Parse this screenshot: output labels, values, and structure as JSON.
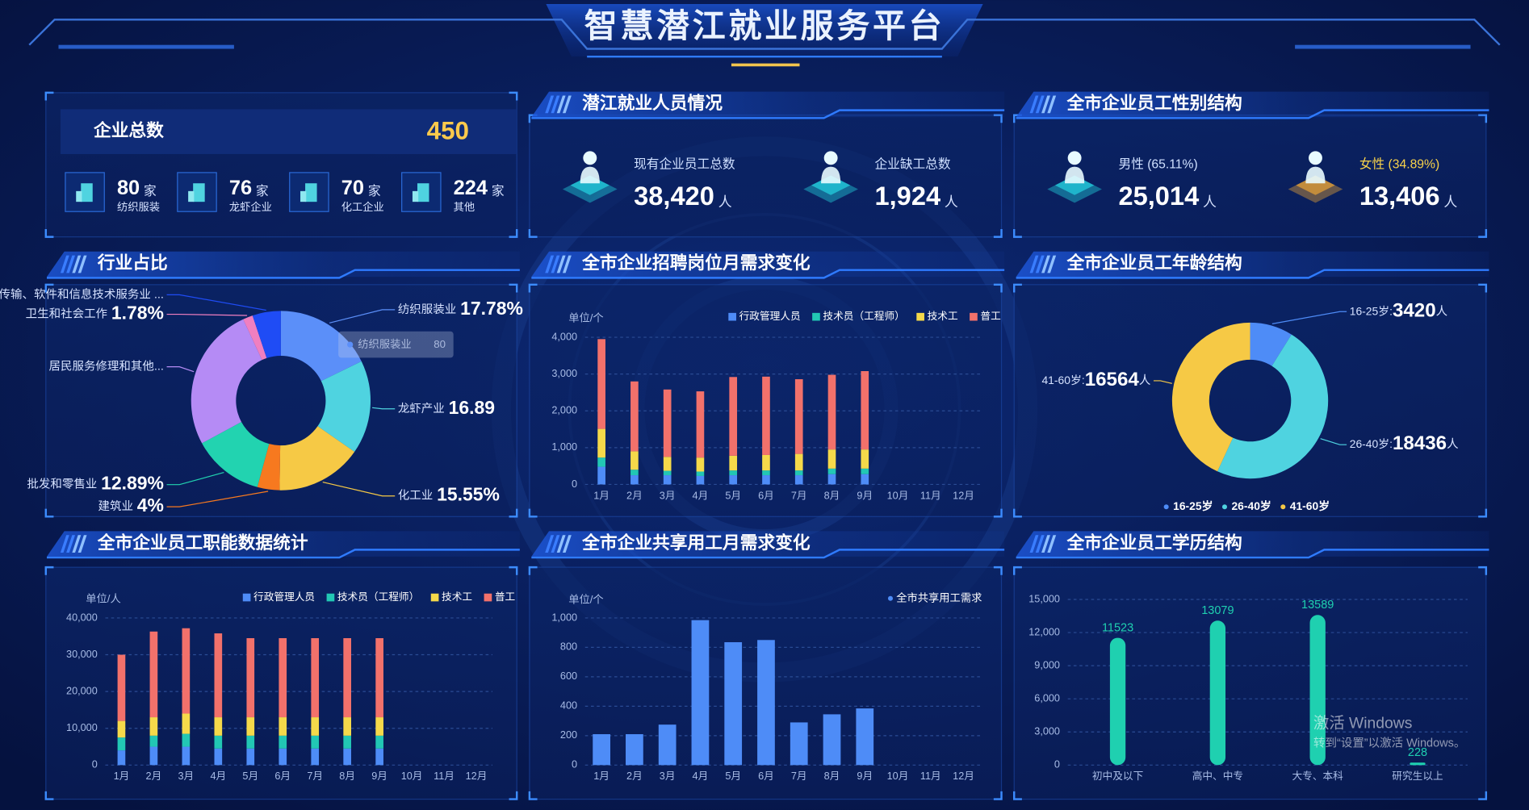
{
  "header": {
    "title": "智慧潜江就业服务平台"
  },
  "enterprise": {
    "label": "企业总数",
    "total": 450,
    "items": [
      {
        "value": 80,
        "unit": "家",
        "name": "纺织服装"
      },
      {
        "value": 76,
        "unit": "家",
        "name": "龙虾企业"
      },
      {
        "value": 70,
        "unit": "家",
        "name": "化工企业"
      },
      {
        "value": 224,
        "unit": "家",
        "name": "其他"
      }
    ]
  },
  "employment": {
    "title": "潜江就业人员情况",
    "items": [
      {
        "label": "现有企业员工总数",
        "value": "38,420",
        "unit": "人"
      },
      {
        "label": "企业缺工总数",
        "value": "1,924",
        "unit": "人"
      }
    ]
  },
  "gender": {
    "title": "全市企业员工性别结构",
    "items": [
      {
        "label": "男性 (65.11%)",
        "value": "25,014",
        "unit": "人"
      },
      {
        "label": "女性 (34.89%)",
        "value": "13,406",
        "unit": "人"
      }
    ]
  },
  "chart_data": [
    {
      "type": "donut",
      "title": "行业占比",
      "categories": [
        "纺织服装业",
        "龙虾产业",
        "化工业",
        "建筑业",
        "批发和零售业",
        "居民服务修理和其他...",
        "卫生和社会工作",
        "信息传输、软件和信息技术服务业 ..."
      ],
      "values": [
        17.78,
        16.89,
        15.55,
        4,
        12.89,
        26,
        1.78,
        5.11
      ],
      "value_labels": [
        "17.78%",
        "16.89",
        "15.55%",
        "4%",
        "12.89%",
        null,
        "1.78%",
        null
      ],
      "colors": [
        "#5b8ff9",
        "#4fd3e0",
        "#f6c945",
        "#f7791f",
        "#22d3b0",
        "#b58bf5",
        "#f07fc0",
        "#1f4cf5"
      ],
      "tooltip": {
        "name": "纺织服装业",
        "value": 80
      }
    },
    {
      "type": "stacked_bar",
      "title": "全市企业招聘岗位月需求变化",
      "y_label": "单位/个",
      "categories": [
        "1月",
        "2月",
        "3月",
        "4月",
        "5月",
        "6月",
        "7月",
        "8月",
        "9月",
        "10月",
        "11月",
        "12月"
      ],
      "series": [
        {
          "name": "行政管理人员",
          "color": "#4e8cf7",
          "values": [
            480,
            250,
            250,
            230,
            250,
            250,
            250,
            280,
            280,
            null,
            null,
            null
          ]
        },
        {
          "name": "技术员（工程师）",
          "color": "#22c7b4",
          "values": [
            250,
            150,
            120,
            120,
            130,
            130,
            130,
            150,
            150,
            null,
            null,
            null
          ]
        },
        {
          "name": "技术工",
          "color": "#f5d94a",
          "values": [
            780,
            500,
            380,
            380,
            400,
            420,
            450,
            520,
            520,
            null,
            null,
            null
          ]
        },
        {
          "name": "普工",
          "color": "#f2716b",
          "values": [
            2440,
            1900,
            1830,
            1800,
            2140,
            2130,
            2030,
            2030,
            2130,
            null,
            null,
            null
          ]
        }
      ],
      "ylim": [
        0,
        4000
      ],
      "yticks": [
        0,
        {
          "value": 1000,
          "label": "1,000"
        },
        {
          "value": 2000,
          "label": "2,000"
        },
        {
          "value": 3000,
          "label": "3,000"
        },
        {
          "value": 4000,
          "label": "4,000"
        }
      ]
    },
    {
      "type": "donut",
      "title": "全市企业员工年龄结构",
      "categories": [
        "16-25岁",
        "26-40岁",
        "41-60岁"
      ],
      "callout_labels": [
        "16-25岁:",
        "26-40岁:",
        "41-60岁:"
      ],
      "values": [
        3420,
        18436,
        16564
      ],
      "unit": "人",
      "colors": [
        "#4e8cf7",
        "#4fd3e0",
        "#f6c945"
      ]
    },
    {
      "type": "stacked_bar",
      "title": "全市企业员工职能数据统计",
      "y_label": "单位/人",
      "categories": [
        "1月",
        "2月",
        "3月",
        "4月",
        "5月",
        "6月",
        "7月",
        "8月",
        "9月",
        "10月",
        "11月",
        "12月"
      ],
      "series": [
        {
          "name": "行政管理人员",
          "color": "#4e8cf7",
          "values": [
            4000,
            5000,
            5000,
            4500,
            4500,
            4500,
            4500,
            4500,
            4500,
            null,
            null,
            null
          ]
        },
        {
          "name": "技术员（工程师）",
          "color": "#22c7b4",
          "values": [
            3500,
            3000,
            3500,
            3500,
            3500,
            3500,
            3500,
            3500,
            3500,
            null,
            null,
            null
          ]
        },
        {
          "name": "技术工",
          "color": "#f5d94a",
          "values": [
            4500,
            5000,
            5500,
            5000,
            5000,
            5000,
            5000,
            5000,
            5000,
            null,
            null,
            null
          ]
        },
        {
          "name": "普工",
          "color": "#f2716b",
          "values": [
            18000,
            23300,
            23200,
            22800,
            21500,
            21500,
            21500,
            21500,
            21500,
            null,
            null,
            null
          ]
        }
      ],
      "ylim": [
        0,
        40000
      ],
      "yticks": [
        0,
        {
          "value": 10000,
          "label": "10,000"
        },
        {
          "value": 20000,
          "label": "20,000"
        },
        {
          "value": 30000,
          "label": "30,000"
        },
        {
          "value": 40000,
          "label": "40,000"
        }
      ]
    },
    {
      "type": "bar",
      "title": "全市企业共享用工月需求变化",
      "y_label": "单位/个",
      "categories": [
        "1月",
        "2月",
        "3月",
        "4月",
        "5月",
        "6月",
        "7月",
        "8月",
        "9月",
        "10月",
        "11月",
        "12月"
      ],
      "series": [
        {
          "name": "全市共享用工需求",
          "color": "#4e8cf7",
          "values": [
            210,
            210,
            275,
            985,
            835,
            850,
            290,
            345,
            385,
            null,
            null,
            null
          ]
        }
      ],
      "ylim": [
        0,
        1000
      ],
      "yticks": [
        0,
        200,
        400,
        600,
        800,
        {
          "value": 1000,
          "label": "1,000"
        }
      ]
    },
    {
      "type": "bar",
      "title": "全市企业员工学历结构",
      "categories": [
        "初中及以下",
        "高中、中专",
        "大专、本科",
        "研究生以上"
      ],
      "values": [
        11523,
        13079,
        13589,
        228
      ],
      "color": "#1fd0b0",
      "ylim": [
        0,
        15000
      ],
      "yticks": [
        0,
        {
          "value": 3000,
          "label": "3,000"
        },
        {
          "value": 6000,
          "label": "6,000"
        },
        {
          "value": 9000,
          "label": "9,000"
        },
        {
          "value": 12000,
          "label": "12,000"
        },
        {
          "value": 15000,
          "label": "15,000"
        }
      ]
    }
  ],
  "watermark": {
    "line1": "激活 Windows",
    "line2": "转到“设置”以激活 Windows。"
  }
}
